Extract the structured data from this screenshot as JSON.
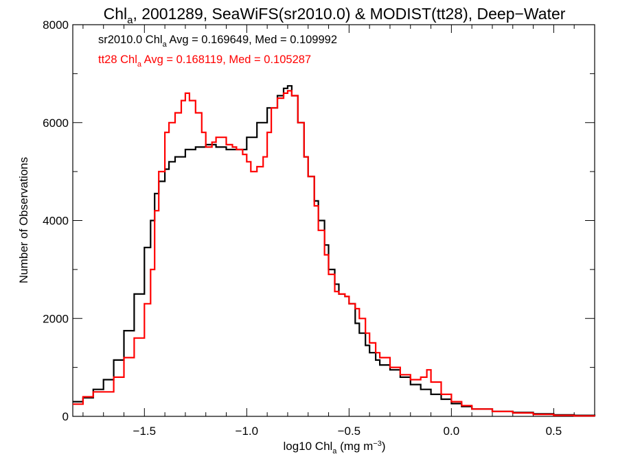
{
  "colors": {
    "series_1": "#000000",
    "series_2": "#ff0000"
  },
  "chart_data": {
    "type": "line",
    "style": "step histogram",
    "title": {
      "prefix": "Chl",
      "sub": "a",
      "rest": ", 2001289, SeaWiFS(sr2010.0) & MODIST(tt28), Deep−Water"
    },
    "xlabel": {
      "prefix": "log10 Chl",
      "sub": "a",
      "rest": " (mg m",
      "sup": "−3",
      "end": ")"
    },
    "ylabel": "Number of Observations",
    "xlim": [
      -1.85,
      0.7
    ],
    "ylim": [
      0,
      8000
    ],
    "xticks": [
      -1.5,
      -1.0,
      -0.5,
      0.0,
      0.5
    ],
    "xtick_labels": [
      "−1.5",
      "−1.0",
      "−0.5",
      "0.0",
      "0.5"
    ],
    "yticks": [
      0,
      2000,
      4000,
      6000,
      8000
    ],
    "ytick_labels": [
      "0",
      "2000",
      "4000",
      "6000",
      "8000"
    ],
    "grid": false,
    "annotations": [
      {
        "prefix": "sr2010.0 Chl",
        "sub": "a",
        "rest": " Avg = 0.169649, Med = 0.109992",
        "series": 0
      },
      {
        "prefix": "tt28 Chl",
        "sub": "a",
        "rest": " Avg = 0.168119, Med = 0.105287",
        "series": 1
      }
    ],
    "series": [
      {
        "color": "#000000",
        "x": [
          -1.85,
          -1.8,
          -1.75,
          -1.7,
          -1.65,
          -1.6,
          -1.55,
          -1.5,
          -1.47,
          -1.45,
          -1.43,
          -1.4,
          -1.38,
          -1.35,
          -1.3,
          -1.25,
          -1.2,
          -1.15,
          -1.1,
          -1.05,
          -1.0,
          -0.95,
          -0.9,
          -0.85,
          -0.82,
          -0.8,
          -0.78,
          -0.75,
          -0.72,
          -0.7,
          -0.67,
          -0.65,
          -0.62,
          -0.6,
          -0.57,
          -0.55,
          -0.52,
          -0.5,
          -0.47,
          -0.45,
          -0.42,
          -0.4,
          -0.37,
          -0.35,
          -0.3,
          -0.25,
          -0.2,
          -0.15,
          -0.1,
          -0.05,
          0.0,
          0.05,
          0.1,
          0.2,
          0.3,
          0.4,
          0.5,
          0.6,
          0.7
        ],
        "y": [
          300,
          380,
          550,
          750,
          1150,
          1750,
          2500,
          3450,
          4000,
          4550,
          4800,
          5050,
          5200,
          5300,
          5450,
          5500,
          5550,
          5500,
          5450,
          5450,
          5700,
          6000,
          6300,
          6550,
          6700,
          6750,
          6550,
          6000,
          5300,
          4900,
          4400,
          4000,
          3500,
          3000,
          2700,
          2500,
          2450,
          2300,
          1900,
          1700,
          1450,
          1300,
          1150,
          1050,
          950,
          800,
          650,
          550,
          450,
          350,
          260,
          200,
          150,
          100,
          80,
          50,
          30,
          20,
          10
        ]
      },
      {
        "color": "#ff0000",
        "x": [
          -1.85,
          -1.8,
          -1.75,
          -1.7,
          -1.65,
          -1.6,
          -1.55,
          -1.5,
          -1.47,
          -1.45,
          -1.43,
          -1.4,
          -1.38,
          -1.35,
          -1.32,
          -1.3,
          -1.28,
          -1.25,
          -1.22,
          -1.2,
          -1.17,
          -1.15,
          -1.12,
          -1.1,
          -1.07,
          -1.05,
          -1.02,
          -1.0,
          -0.98,
          -0.95,
          -0.92,
          -0.9,
          -0.88,
          -0.85,
          -0.82,
          -0.8,
          -0.78,
          -0.75,
          -0.72,
          -0.7,
          -0.67,
          -0.65,
          -0.62,
          -0.6,
          -0.57,
          -0.55,
          -0.52,
          -0.5,
          -0.47,
          -0.45,
          -0.42,
          -0.4,
          -0.37,
          -0.35,
          -0.3,
          -0.25,
          -0.2,
          -0.15,
          -0.12,
          -0.1,
          -0.05,
          0.0,
          0.05,
          0.1,
          0.2,
          0.3,
          0.4,
          0.5,
          0.6,
          0.7
        ],
        "y": [
          250,
          400,
          500,
          500,
          800,
          1200,
          1600,
          2300,
          3000,
          4200,
          5000,
          5800,
          6000,
          6200,
          6450,
          6600,
          6450,
          6200,
          5800,
          5500,
          5600,
          5700,
          5700,
          5550,
          5500,
          5450,
          5350,
          5200,
          5000,
          5100,
          5300,
          5800,
          6300,
          6500,
          6600,
          6650,
          6550,
          6000,
          5300,
          4900,
          4300,
          3800,
          3300,
          2900,
          2550,
          2500,
          2450,
          2300,
          2200,
          2000,
          1700,
          1500,
          1300,
          1200,
          1000,
          850,
          750,
          800,
          950,
          700,
          450,
          300,
          220,
          150,
          100,
          70,
          40,
          20,
          10,
          5
        ]
      }
    ]
  }
}
